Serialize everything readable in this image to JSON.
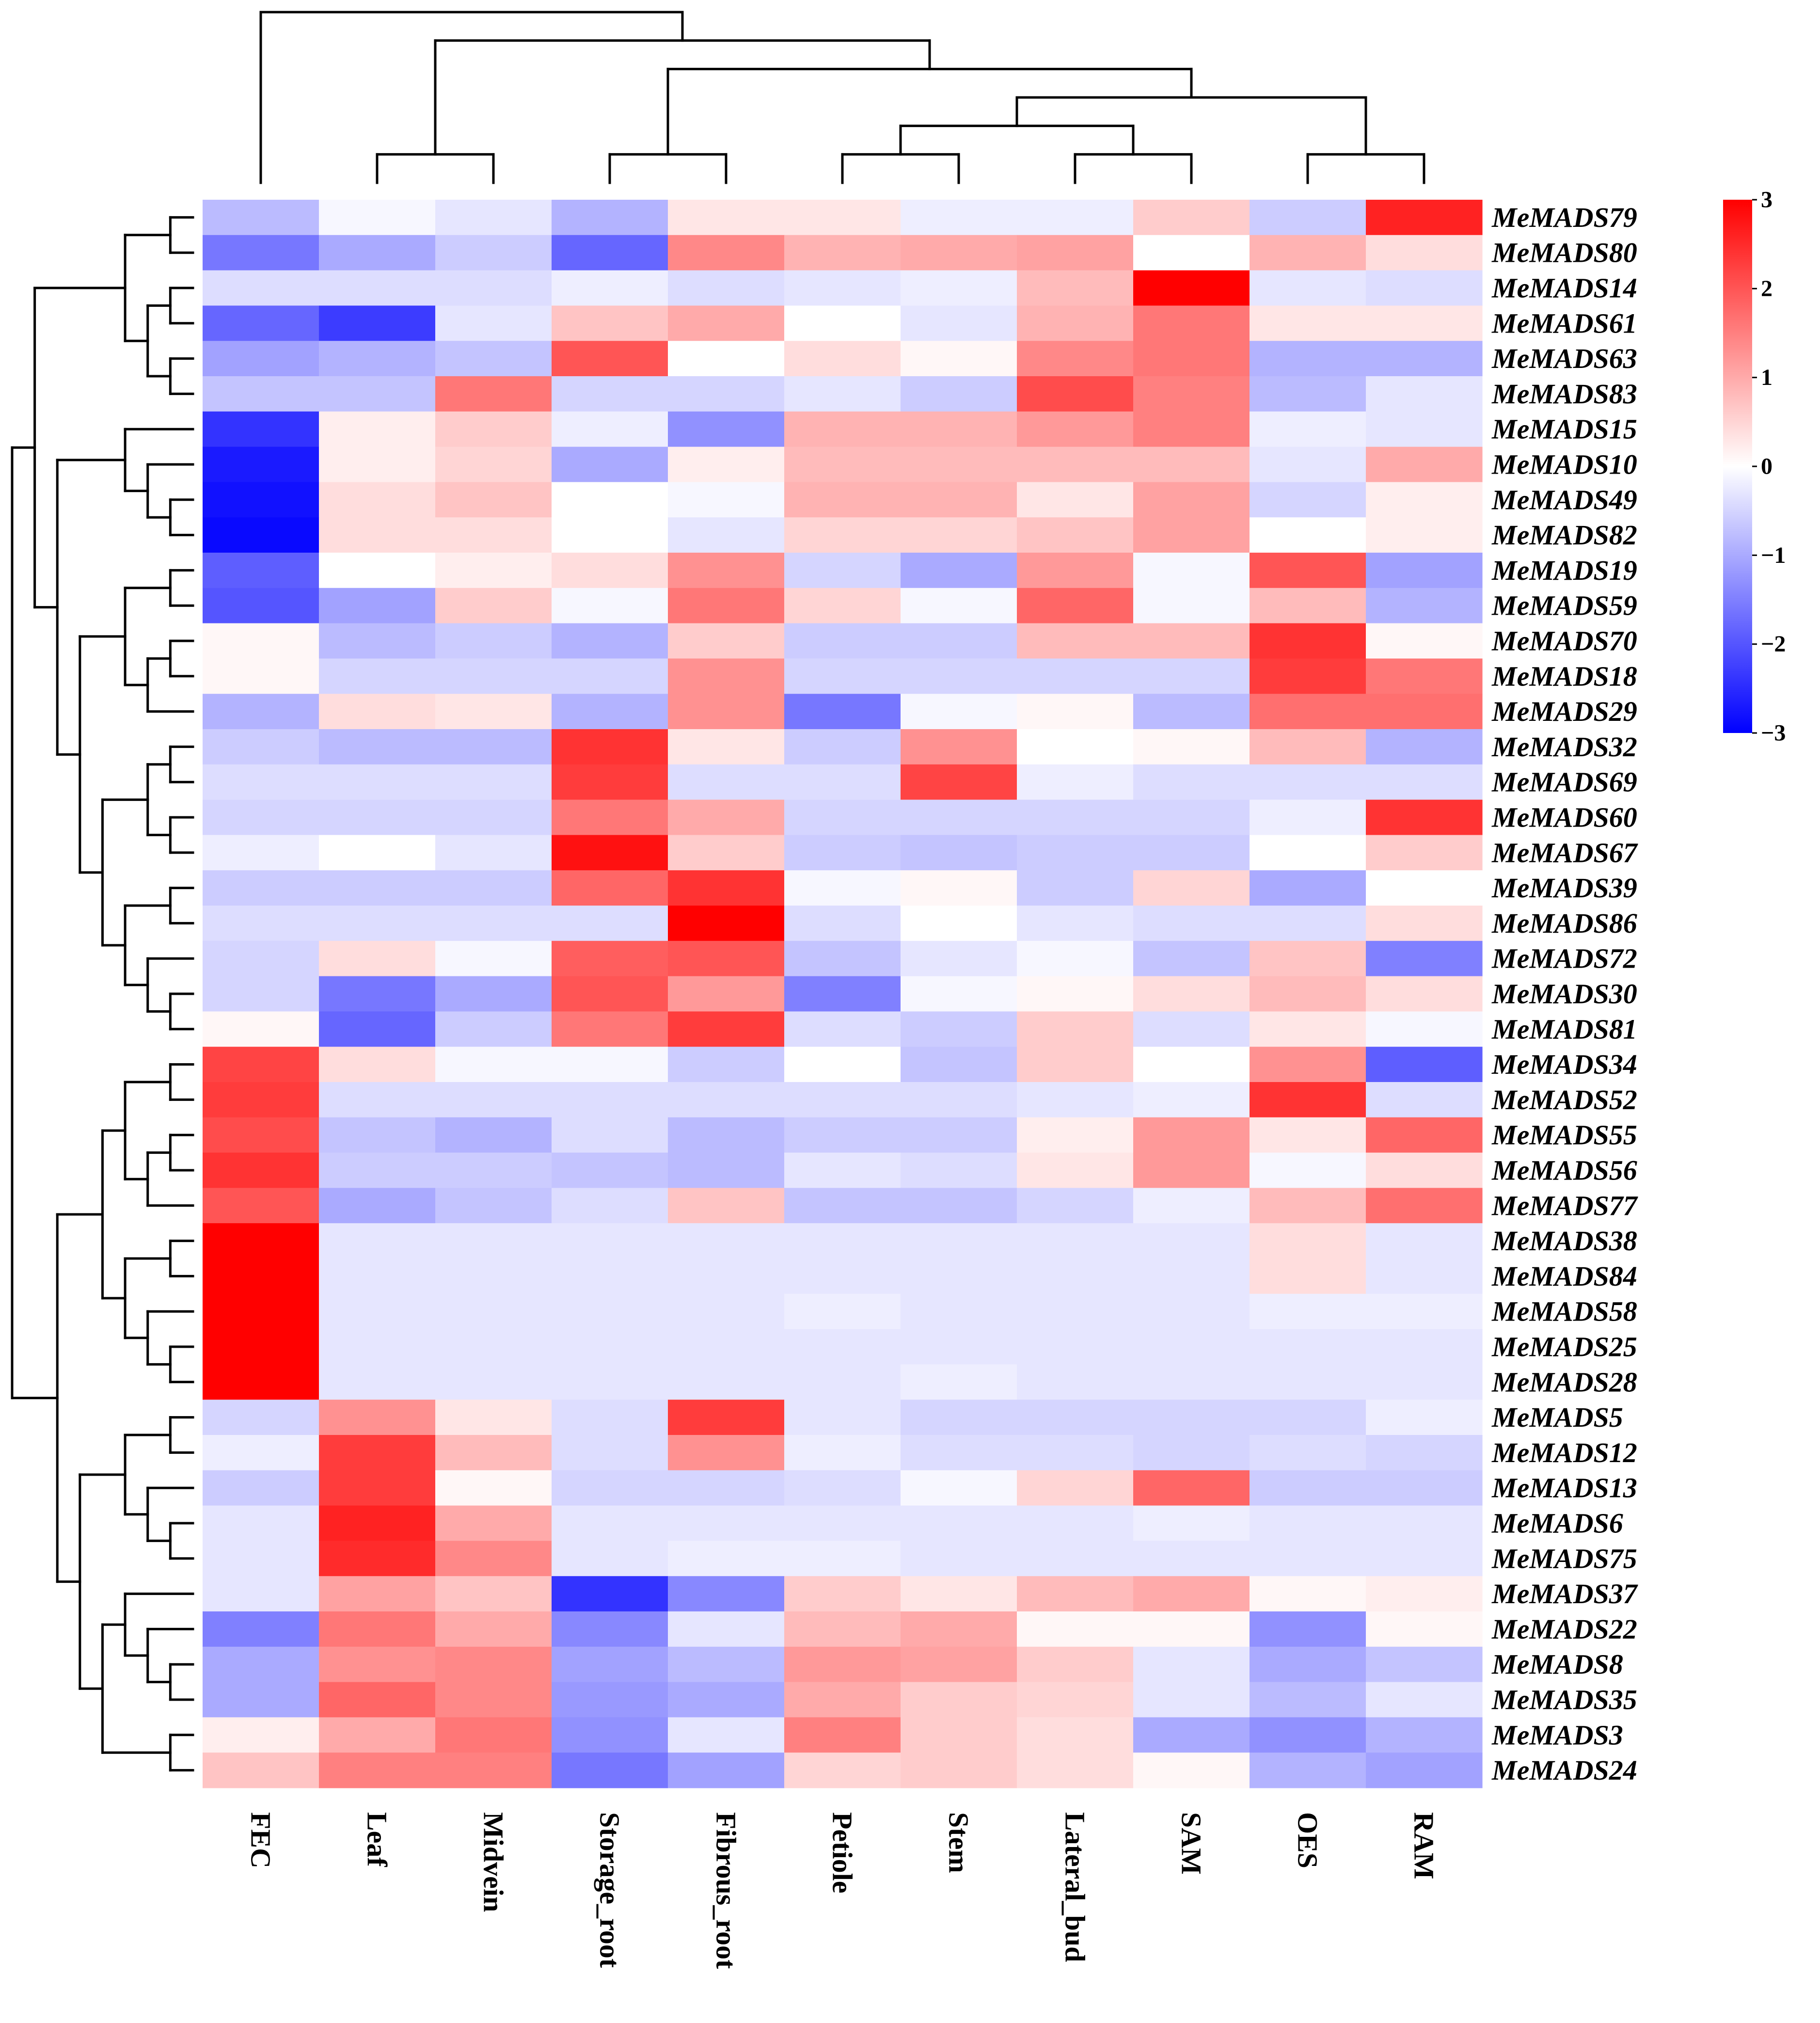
{
  "chart_data": {
    "type": "heatmap",
    "title": "",
    "columns": [
      "FEC",
      "Leaf",
      "Midvein",
      "Storage_root",
      "Fibrous_root",
      "Petiole",
      "Stem",
      "Lateral_bud",
      "SAM",
      "OES",
      "RAM"
    ],
    "rows": [
      "MeMADS79",
      "MeMADS80",
      "MeMADS14",
      "MeMADS61",
      "MeMADS63",
      "MeMADS83",
      "MeMADS15",
      "MeMADS10",
      "MeMADS49",
      "MeMADS82",
      "MeMADS19",
      "MeMADS59",
      "MeMADS70",
      "MeMADS18",
      "MeMADS29",
      "MeMADS32",
      "MeMADS69",
      "MeMADS60",
      "MeMADS67",
      "MeMADS39",
      "MeMADS86",
      "MeMADS72",
      "MeMADS30",
      "MeMADS81",
      "MeMADS34",
      "MeMADS52",
      "MeMADS55",
      "MeMADS56",
      "MeMADS77",
      "MeMADS38",
      "MeMADS84",
      "MeMADS58",
      "MeMADS25",
      "MeMADS28",
      "MeMADS5",
      "MeMADS12",
      "MeMADS13",
      "MeMADS6",
      "MeMADS75",
      "MeMADS37",
      "MeMADS22",
      "MeMADS8",
      "MeMADS35",
      "MeMADS3",
      "MeMADS24"
    ],
    "values": [
      [
        -0.8,
        -0.1,
        -0.3,
        -0.9,
        0.3,
        0.3,
        -0.2,
        -0.2,
        0.6,
        -0.6,
        2.6
      ],
      [
        -1.6,
        -1.0,
        -0.6,
        -1.8,
        1.4,
        0.9,
        1.0,
        1.1,
        0.0,
        0.9,
        0.4
      ],
      [
        -0.4,
        -0.4,
        -0.4,
        -0.2,
        -0.4,
        -0.3,
        -0.2,
        0.8,
        3.0,
        -0.3,
        -0.4
      ],
      [
        -1.8,
        -2.3,
        -0.3,
        0.7,
        1.0,
        0.0,
        -0.3,
        0.9,
        1.6,
        0.3,
        0.3
      ],
      [
        -1.1,
        -0.9,
        -0.7,
        2.0,
        0.0,
        0.4,
        0.1,
        1.4,
        1.6,
        -0.9,
        -0.9
      ],
      [
        -0.7,
        -0.7,
        1.6,
        -0.5,
        -0.5,
        -0.3,
        -0.6,
        2.1,
        1.5,
        -0.8,
        -0.3
      ],
      [
        -2.4,
        0.2,
        0.6,
        -0.2,
        -1.3,
        0.9,
        0.9,
        1.2,
        1.5,
        -0.2,
        -0.3
      ],
      [
        -2.7,
        0.2,
        0.5,
        -1.0,
        0.2,
        0.8,
        0.8,
        0.8,
        0.8,
        -0.3,
        1.0
      ],
      [
        -2.8,
        0.4,
        0.7,
        0.0,
        -0.1,
        0.9,
        0.9,
        0.3,
        1.1,
        -0.5,
        0.2
      ],
      [
        -2.9,
        0.4,
        0.4,
        0.0,
        -0.3,
        0.5,
        0.5,
        0.7,
        1.1,
        0.0,
        0.2
      ],
      [
        -1.9,
        0.0,
        0.2,
        0.4,
        1.3,
        -0.5,
        -1.0,
        1.2,
        -0.1,
        2.0,
        -1.1
      ],
      [
        -2.0,
        -1.1,
        0.6,
        -0.1,
        1.6,
        0.5,
        -0.1,
        1.8,
        -0.1,
        0.8,
        -0.9
      ],
      [
        0.1,
        -0.8,
        -0.6,
        -0.9,
        0.6,
        -0.6,
        -0.6,
        0.8,
        0.8,
        2.4,
        0.1
      ],
      [
        0.1,
        -0.5,
        -0.5,
        -0.5,
        1.3,
        -0.5,
        -0.5,
        -0.5,
        -0.5,
        2.3,
        1.6
      ],
      [
        -0.9,
        0.4,
        0.3,
        -0.9,
        1.3,
        -1.6,
        -0.1,
        0.1,
        -0.8,
        1.7,
        1.7
      ],
      [
        -0.6,
        -0.8,
        -0.8,
        2.4,
        0.3,
        -0.6,
        1.3,
        0.0,
        0.1,
        0.8,
        -0.9
      ],
      [
        -0.4,
        -0.4,
        -0.4,
        2.3,
        -0.4,
        -0.4,
        2.2,
        -0.2,
        -0.4,
        -0.4,
        -0.4
      ],
      [
        -0.5,
        -0.5,
        -0.5,
        1.6,
        1.0,
        -0.5,
        -0.5,
        -0.5,
        -0.5,
        -0.2,
        2.4
      ],
      [
        -0.2,
        0.0,
        -0.3,
        2.8,
        0.6,
        -0.6,
        -0.7,
        -0.6,
        -0.6,
        0.0,
        0.6
      ],
      [
        -0.6,
        -0.6,
        -0.6,
        1.8,
        2.4,
        -0.1,
        0.1,
        -0.6,
        0.5,
        -1.0,
        0.0
      ],
      [
        -0.4,
        -0.4,
        -0.4,
        -0.4,
        3.0,
        -0.4,
        0.0,
        -0.3,
        -0.4,
        -0.4,
        0.4
      ],
      [
        -0.5,
        0.4,
        -0.1,
        1.9,
        2.0,
        -0.7,
        -0.3,
        -0.1,
        -0.7,
        0.7,
        -1.5
      ],
      [
        -0.5,
        -1.6,
        -1.0,
        2.0,
        1.2,
        -1.5,
        -0.1,
        0.1,
        0.4,
        0.8,
        0.4
      ],
      [
        0.1,
        -1.8,
        -0.6,
        1.6,
        2.3,
        -0.4,
        -0.6,
        0.6,
        -0.4,
        0.3,
        -0.1
      ],
      [
        2.2,
        0.4,
        -0.1,
        -0.1,
        -0.6,
        0.0,
        -0.7,
        0.6,
        0.0,
        1.3,
        -1.9
      ],
      [
        2.3,
        -0.4,
        -0.4,
        -0.4,
        -0.4,
        -0.4,
        -0.4,
        -0.3,
        -0.2,
        2.4,
        -0.4
      ],
      [
        2.1,
        -0.7,
        -0.9,
        -0.4,
        -0.8,
        -0.6,
        -0.6,
        0.2,
        1.2,
        0.3,
        1.8
      ],
      [
        2.4,
        -0.6,
        -0.6,
        -0.7,
        -0.8,
        -0.3,
        -0.4,
        0.3,
        1.2,
        -0.1,
        0.4
      ],
      [
        2.0,
        -1.0,
        -0.7,
        -0.4,
        0.7,
        -0.7,
        -0.7,
        -0.5,
        -0.2,
        0.8,
        1.7
      ],
      [
        3.0,
        -0.3,
        -0.3,
        -0.3,
        -0.3,
        -0.3,
        -0.3,
        -0.3,
        -0.3,
        0.4,
        -0.3
      ],
      [
        3.0,
        -0.3,
        -0.3,
        -0.3,
        -0.3,
        -0.3,
        -0.3,
        -0.3,
        -0.3,
        0.4,
        -0.3
      ],
      [
        3.0,
        -0.3,
        -0.3,
        -0.3,
        -0.3,
        -0.2,
        -0.3,
        -0.3,
        -0.3,
        -0.2,
        -0.2
      ],
      [
        3.0,
        -0.3,
        -0.3,
        -0.3,
        -0.3,
        -0.3,
        -0.3,
        -0.3,
        -0.3,
        -0.3,
        -0.3
      ],
      [
        3.0,
        -0.3,
        -0.3,
        -0.3,
        -0.3,
        -0.3,
        -0.2,
        -0.3,
        -0.3,
        -0.3,
        -0.3
      ],
      [
        -0.5,
        1.3,
        0.3,
        -0.4,
        2.3,
        -0.3,
        -0.5,
        -0.5,
        -0.5,
        -0.5,
        -0.2
      ],
      [
        -0.2,
        2.3,
        0.8,
        -0.4,
        1.3,
        -0.2,
        -0.4,
        -0.4,
        -0.5,
        -0.4,
        -0.5
      ],
      [
        -0.6,
        2.3,
        0.1,
        -0.5,
        -0.5,
        -0.4,
        -0.1,
        0.5,
        1.8,
        -0.6,
        -0.6
      ],
      [
        -0.3,
        2.6,
        1.0,
        -0.3,
        -0.3,
        -0.3,
        -0.3,
        -0.3,
        -0.2,
        -0.3,
        -0.3
      ],
      [
        -0.3,
        2.5,
        1.4,
        -0.3,
        -0.2,
        -0.2,
        -0.3,
        -0.3,
        -0.3,
        -0.3,
        -0.3
      ],
      [
        -0.3,
        1.1,
        0.7,
        -2.4,
        -1.4,
        0.6,
        0.3,
        0.8,
        1.0,
        0.1,
        0.2
      ],
      [
        -1.5,
        1.6,
        1.0,
        -1.4,
        -0.3,
        0.8,
        1.0,
        0.1,
        0.1,
        -1.3,
        0.1
      ],
      [
        -1.0,
        1.3,
        1.4,
        -1.1,
        -0.8,
        1.2,
        1.1,
        0.6,
        -0.3,
        -1.0,
        -0.7
      ],
      [
        -1.0,
        1.8,
        1.4,
        -1.2,
        -1.0,
        1.0,
        0.6,
        0.5,
        -0.3,
        -0.8,
        -0.3
      ],
      [
        0.2,
        1.0,
        1.6,
        -1.3,
        -0.3,
        1.5,
        0.6,
        0.4,
        -1.0,
        -1.3,
        -0.9
      ],
      [
        0.7,
        1.5,
        1.5,
        -1.6,
        -1.1,
        0.5,
        0.6,
        0.4,
        0.1,
        -0.9,
        -1.1
      ]
    ],
    "color_scale": {
      "min": -3,
      "mid": 0,
      "max": 3,
      "low_color": "#0000ff",
      "mid_color": "#ffffff",
      "high_color": "#ff0000"
    },
    "legend": {
      "ticks": [
        3,
        2,
        1,
        0,
        -1,
        -2,
        -3
      ],
      "tick_labels": [
        "3",
        "2",
        "1",
        "0",
        "−1",
        "−2",
        "−3"
      ],
      "placement": "top-right"
    },
    "column_dendrogram": {
      "placement": "top"
    },
    "row_dendrogram": {
      "placement": "left"
    }
  }
}
